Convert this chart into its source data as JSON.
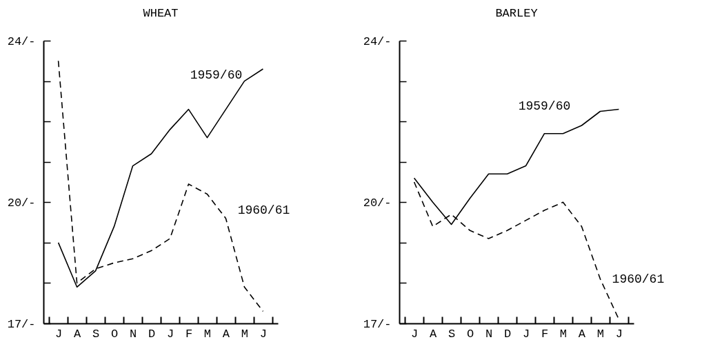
{
  "chart_data": [
    {
      "type": "line",
      "title": "WHEAT",
      "categories": [
        "J",
        "A",
        "S",
        "O",
        "N",
        "D",
        "J",
        "F",
        "M",
        "A",
        "M",
        "J"
      ],
      "ylim": [
        17,
        24
      ],
      "yticks": [
        {
          "value": 17,
          "label": "17/-"
        },
        {
          "value": 18,
          "label": null
        },
        {
          "value": 19,
          "label": null
        },
        {
          "value": 20,
          "label": "20/-"
        },
        {
          "value": 21,
          "label": null
        },
        {
          "value": 22,
          "label": null
        },
        {
          "value": 23,
          "label": null
        },
        {
          "value": 24,
          "label": "24/-"
        }
      ],
      "grid": false,
      "series": [
        {
          "name": "1959/60",
          "color": "#000000",
          "line_style": "solid",
          "values": [
            19.0,
            17.9,
            18.3,
            19.4,
            20.9,
            21.2,
            21.8,
            22.3,
            21.6,
            22.3,
            23.0,
            23.3
          ]
        },
        {
          "name": "1960/61",
          "color": "#000000",
          "line_style": "dashed",
          "values": [
            23.5,
            18.0,
            18.35,
            18.5,
            18.6,
            18.8,
            19.1,
            20.45,
            20.2,
            19.6,
            17.9,
            17.3
          ]
        }
      ]
    },
    {
      "type": "line",
      "title": "BARLEY",
      "categories": [
        "J",
        "A",
        "S",
        "O",
        "N",
        "D",
        "J",
        "F",
        "M",
        "A",
        "M",
        "J"
      ],
      "ylim": [
        17,
        24
      ],
      "yticks": [
        {
          "value": 17,
          "label": "17/-"
        },
        {
          "value": 18,
          "label": null
        },
        {
          "value": 19,
          "label": null
        },
        {
          "value": 20,
          "label": "20/-"
        },
        {
          "value": 21,
          "label": null
        },
        {
          "value": 22,
          "label": null
        },
        {
          "value": 23,
          "label": null
        },
        {
          "value": 24,
          "label": "24/-"
        }
      ],
      "grid": false,
      "series": [
        {
          "name": "1959/60",
          "color": "#000000",
          "line_style": "solid",
          "values": [
            20.6,
            20.0,
            19.45,
            20.1,
            20.7,
            20.7,
            20.9,
            21.7,
            21.7,
            21.9,
            22.25,
            22.3
          ]
        },
        {
          "name": "1960/61",
          "color": "#000000",
          "line_style": "dashed",
          "values": [
            20.5,
            19.4,
            19.7,
            19.3,
            19.1,
            19.3,
            19.55,
            19.8,
            20.0,
            19.4,
            18.1,
            17.1
          ]
        }
      ]
    }
  ]
}
